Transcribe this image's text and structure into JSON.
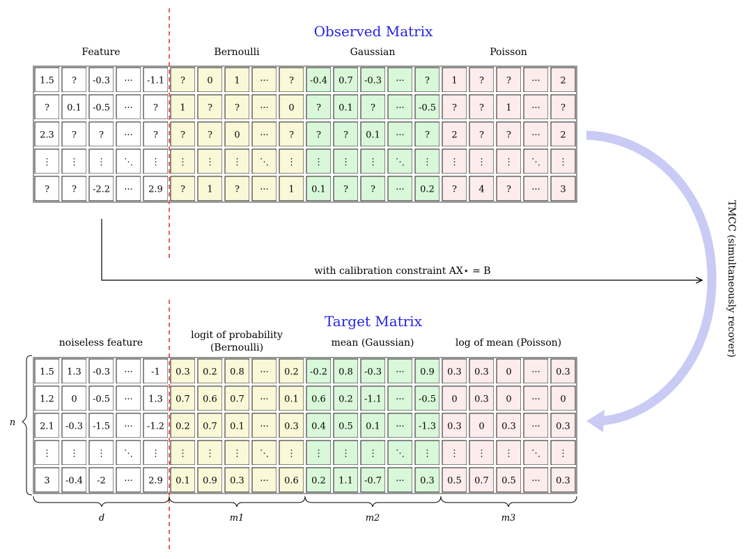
{
  "colors": {
    "feature": "#ffffff",
    "bernoulli": "#fbf8d8",
    "gaussian": "#d9f7d9",
    "poisson": "#fcecec",
    "title": "#2222e6",
    "divider": "#e03a3a",
    "arrow": "#c9cbf5"
  },
  "observed": {
    "title": "Observed Matrix",
    "headers": [
      "Feature",
      "Bernoulli",
      "Gaussian",
      "Poisson"
    ],
    "rows": [
      [
        "1.5",
        "?",
        "-0.3",
        "···",
        "-1.1",
        "?",
        "0",
        "1",
        "···",
        "?",
        "-0.4",
        "0.7",
        "-0.3",
        "···",
        "?",
        "1",
        "?",
        "?",
        "···",
        "2"
      ],
      [
        "?",
        "0.1",
        "-0.5",
        "···",
        "?",
        "1",
        "?",
        "?",
        "···",
        "0",
        "?",
        "0.1",
        "?",
        "···",
        "-0.5",
        "?",
        "?",
        "1",
        "···",
        "?"
      ],
      [
        "2.3",
        "?",
        "?",
        "···",
        "?",
        "?",
        "?",
        "0",
        "···",
        "?",
        "?",
        "?",
        "0.1",
        "···",
        "?",
        "2",
        "?",
        "?",
        "···",
        "2"
      ],
      [
        "⋮",
        "⋮",
        "⋮",
        "⋱",
        "⋮",
        "⋮",
        "⋮",
        "⋮",
        "⋱",
        "⋮",
        "⋮",
        "⋮",
        "⋮",
        "⋱",
        "⋮",
        "⋮",
        "⋮",
        "⋮",
        "⋱",
        "⋮"
      ],
      [
        "?",
        "?",
        "-2.2",
        "···",
        "2.9",
        "?",
        "1",
        "?",
        "···",
        "1",
        "0.1",
        "?",
        "?",
        "···",
        "0.2",
        "?",
        "4",
        "?",
        "···",
        "3"
      ]
    ]
  },
  "target": {
    "title": "Target Matrix",
    "headers": [
      {
        "lines": [
          "noiseless feature"
        ]
      },
      {
        "lines": [
          "logit of probability",
          "(Bernoulli)"
        ]
      },
      {
        "lines": [
          "mean (Gaussian)"
        ]
      },
      {
        "lines": [
          "log of mean (Poisson)"
        ]
      }
    ],
    "rows": [
      [
        "1.5",
        "1.3",
        "-0.3",
        "···",
        "-1",
        "0.3",
        "0.2",
        "0.8",
        "···",
        "0.2",
        "-0.2",
        "0.8",
        "-0.3",
        "···",
        "0.9",
        "0.3",
        "0.3",
        "0",
        "···",
        "0.3"
      ],
      [
        "1.2",
        "0",
        "-0.5",
        "···",
        "1.3",
        "0.7",
        "0.6",
        "0.7",
        "···",
        "0.1",
        "0.6",
        "0.2",
        "-1.1",
        "···",
        "-0.5",
        "0",
        "0.3",
        "0",
        "···",
        "0"
      ],
      [
        "2.1",
        "-0.3",
        "-1.5",
        "···",
        "-1.2",
        "0.2",
        "0.7",
        "0.1",
        "···",
        "0.3",
        "0.4",
        "0.5",
        "0.1",
        "···",
        "-1.3",
        "0.3",
        "0",
        "0.3",
        "···",
        "0.3"
      ],
      [
        "⋮",
        "⋮",
        "⋮",
        "⋱",
        "⋮",
        "⋮",
        "⋮",
        "⋮",
        "⋱",
        "⋮",
        "⋮",
        "⋮",
        "⋮",
        "⋱",
        "⋮",
        "⋮",
        "⋮",
        "⋮",
        "⋱",
        "⋮"
      ],
      [
        "3",
        "-0.4",
        "-2",
        "···",
        "2.9",
        "0.1",
        "0.9",
        "0.3",
        "···",
        "0.6",
        "0.2",
        "1.1",
        "-0.7",
        "···",
        "0.3",
        "0.5",
        "0.7",
        "0.5",
        "···",
        "0.3"
      ]
    ],
    "row_label": "n",
    "col_labels": [
      "d",
      "m1",
      "m2",
      "m3"
    ]
  },
  "constraint_label": "with calibration constraint AX⋆ = B",
  "tmcc_label": "TMCC (simultaneously recover)"
}
